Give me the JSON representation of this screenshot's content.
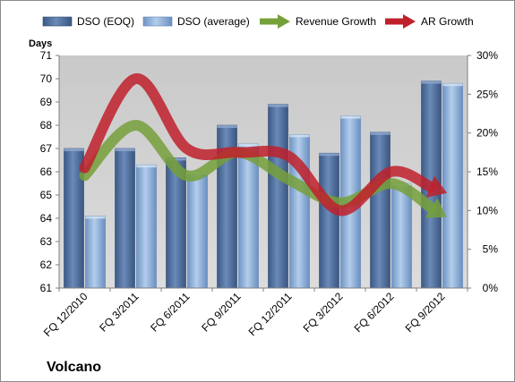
{
  "chart_data": {
    "type": "bar",
    "categories": [
      "FQ 12/2010",
      "FQ 3/2011",
      "FQ 6/2011",
      "FQ 9/2011",
      "FQ 12/2011",
      "FQ 3/2012",
      "FQ 6/2012",
      "FQ 9/2012"
    ],
    "series": [
      {
        "name": "DSO (EOQ)",
        "type": "bar",
        "axis": "left",
        "values": [
          67.0,
          67.0,
          66.6,
          68.0,
          68.9,
          66.8,
          67.7,
          69.9
        ],
        "color": "#4f6f9f"
      },
      {
        "name": "DSO (average)",
        "type": "bar",
        "axis": "left",
        "values": [
          64.1,
          66.3,
          66.0,
          67.2,
          67.6,
          68.4,
          65.5,
          69.8
        ],
        "color": "#8fb3de"
      },
      {
        "name": "Revenue Growth",
        "type": "line",
        "axis": "right",
        "unit": "percent",
        "values": [
          14.5,
          21.0,
          14.5,
          17.5,
          14.0,
          11.0,
          13.5,
          9.5
        ],
        "color": "#76a03a"
      },
      {
        "name": "AR Growth",
        "type": "line",
        "axis": "right",
        "unit": "percent",
        "values": [
          15.5,
          27.0,
          18.0,
          17.5,
          17.0,
          10.0,
          15.0,
          12.5
        ],
        "color": "#c0202c"
      }
    ],
    "ylabel": "Days",
    "ylim": [
      61,
      71
    ],
    "yticks": [
      "61",
      "62",
      "63",
      "64",
      "65",
      "66",
      "67",
      "68",
      "69",
      "70",
      "71"
    ],
    "y2lim": [
      0,
      30
    ],
    "y2ticks": [
      "0%",
      "5%",
      "10%",
      "15%",
      "20%",
      "25%",
      "30%"
    ],
    "grid": false,
    "legend": "top",
    "company": "Volcano"
  }
}
